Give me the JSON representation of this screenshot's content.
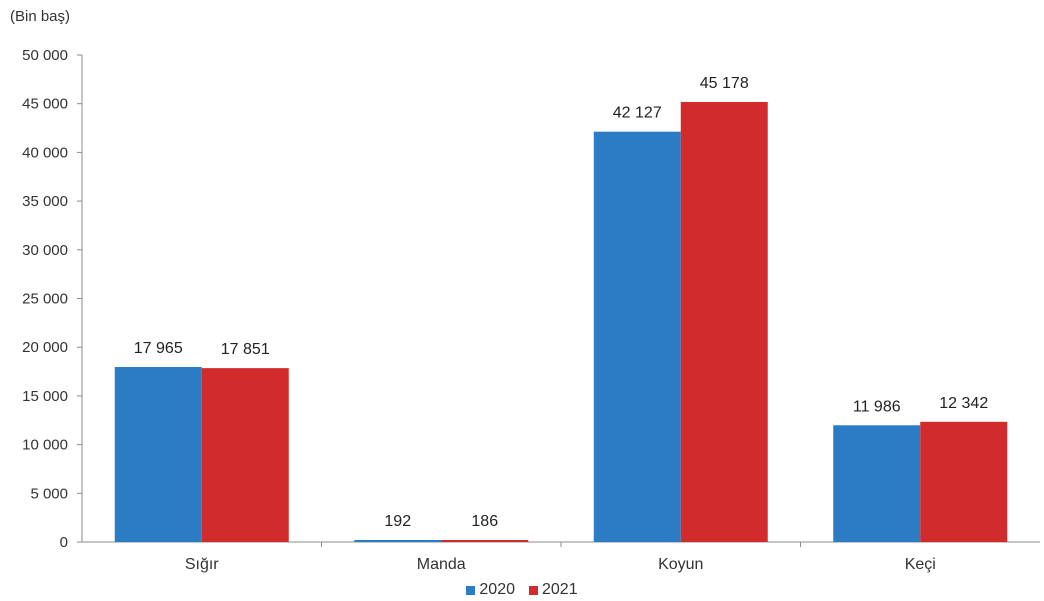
{
  "chart_data": {
    "type": "bar",
    "ylabel": "(Bin baş)",
    "categories": [
      "Sığır",
      "Manda",
      "Koyun",
      "Keçi"
    ],
    "series": [
      {
        "name": "2020",
        "color": "#2b7cc4",
        "values": [
          17965,
          192,
          42127,
          11986
        ],
        "labels": [
          "17 965",
          "192",
          "42 127",
          "11 986"
        ]
      },
      {
        "name": "2021",
        "color": "#d12b2b",
        "values": [
          17851,
          186,
          45178,
          12342
        ],
        "labels": [
          "17 851",
          "186",
          "45 178",
          "12 342"
        ]
      }
    ],
    "ylim": [
      0,
      50000
    ],
    "yticks": [
      0,
      5000,
      10000,
      15000,
      20000,
      25000,
      30000,
      35000,
      40000,
      45000,
      50000
    ],
    "ytick_labels": [
      "0",
      "5 000",
      "10 000",
      "15 000",
      "20 000",
      "25 000",
      "30 000",
      "35 000",
      "40 000",
      "45 000",
      "50 000"
    ],
    "grid": false,
    "legend_position": "bottom-center"
  }
}
